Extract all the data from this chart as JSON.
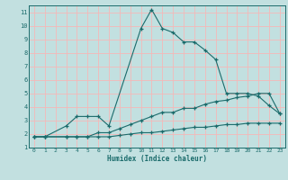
{
  "xlabel": "Humidex (Indice chaleur)",
  "bg_color": "#c2e0e0",
  "line_color": "#1a6b6b",
  "grid_color": "#f5b8b8",
  "xlim": [
    -0.5,
    23.5
  ],
  "ylim": [
    1,
    11.5
  ],
  "xticks": [
    0,
    1,
    2,
    3,
    4,
    5,
    6,
    7,
    8,
    9,
    10,
    11,
    12,
    13,
    14,
    15,
    16,
    17,
    18,
    19,
    20,
    21,
    22,
    23
  ],
  "yticks": [
    1,
    2,
    3,
    4,
    5,
    6,
    7,
    8,
    9,
    10,
    11
  ],
  "line1_x": [
    0,
    1,
    3,
    4,
    5,
    6,
    7,
    10,
    11,
    12,
    13,
    14,
    15,
    16,
    17,
    18,
    19,
    20,
    21,
    22,
    23
  ],
  "line1_y": [
    1.8,
    1.8,
    2.6,
    3.3,
    3.3,
    3.3,
    2.6,
    9.8,
    11.2,
    9.8,
    9.5,
    8.8,
    8.8,
    8.2,
    7.5,
    5.0,
    5.0,
    5.0,
    4.8,
    4.1,
    3.5
  ],
  "line2_x": [
    0,
    1,
    3,
    4,
    5,
    6,
    7,
    8,
    9,
    10,
    11,
    12,
    13,
    14,
    15,
    16,
    17,
    18,
    19,
    20,
    21,
    22,
    23
  ],
  "line2_y": [
    1.8,
    1.8,
    1.8,
    1.8,
    1.8,
    2.1,
    2.1,
    2.4,
    2.7,
    3.0,
    3.3,
    3.6,
    3.6,
    3.9,
    3.9,
    4.2,
    4.4,
    4.5,
    4.7,
    4.8,
    5.0,
    5.0,
    3.5
  ],
  "line3_x": [
    0,
    1,
    3,
    4,
    5,
    6,
    7,
    8,
    9,
    10,
    11,
    12,
    13,
    14,
    15,
    16,
    17,
    18,
    19,
    20,
    21,
    22,
    23
  ],
  "line3_y": [
    1.8,
    1.8,
    1.8,
    1.8,
    1.8,
    1.8,
    1.8,
    1.9,
    2.0,
    2.1,
    2.1,
    2.2,
    2.3,
    2.4,
    2.5,
    2.5,
    2.6,
    2.7,
    2.7,
    2.8,
    2.8,
    2.8,
    2.8
  ]
}
